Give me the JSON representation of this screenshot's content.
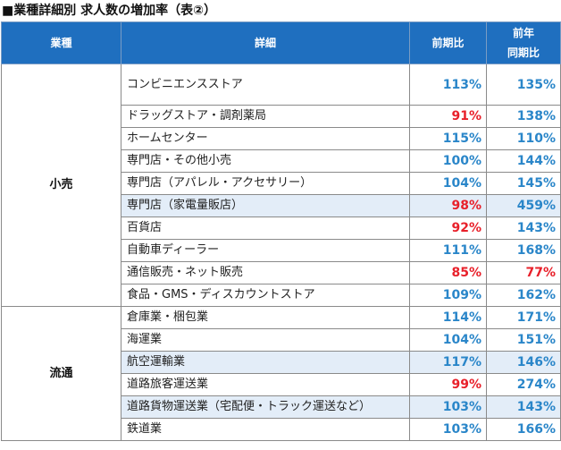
{
  "title": "■業種詳細別 求人数の増加率（表②）",
  "headers": {
    "category": "業種",
    "detail": "詳細",
    "mom": "前期比",
    "yoy_line1": "前年",
    "yoy_line2": "同期比"
  },
  "groups": [
    {
      "category": "小売",
      "rows": [
        {
          "detail": "コンビニエンスストア",
          "mom": "113%",
          "yoy": "135%"
        },
        {
          "detail": "ドラッグストア・調剤薬局",
          "mom": "91%",
          "yoy": "138%"
        },
        {
          "detail": "ホームセンター",
          "mom": "115%",
          "yoy": "110%"
        },
        {
          "detail": "専門店・その他小売",
          "mom": "100%",
          "yoy": "144%"
        },
        {
          "detail": "専門店（アパレル・アクセサリー）",
          "mom": "104%",
          "yoy": "145%"
        },
        {
          "detail": "専門店（家電量販店）",
          "mom": "98%",
          "yoy": "459%"
        },
        {
          "detail": "百貨店",
          "mom": "92%",
          "yoy": "143%"
        },
        {
          "detail": "自動車ディーラー",
          "mom": "111%",
          "yoy": "168%"
        },
        {
          "detail": "通信販売・ネット販売",
          "mom": "85%",
          "yoy": "77%"
        },
        {
          "detail": "食品・GMS・ディスカウントストア",
          "mom": "109%",
          "yoy": "162%"
        }
      ]
    },
    {
      "category": "流通",
      "rows": [
        {
          "detail": "倉庫業・梱包業",
          "mom": "114%",
          "yoy": "171%"
        },
        {
          "detail": "海運業",
          "mom": "104%",
          "yoy": "151%"
        },
        {
          "detail": "航空運輸業",
          "mom": "117%",
          "yoy": "146%"
        },
        {
          "detail": "道路旅客運送業",
          "mom": "99%",
          "yoy": "274%"
        },
        {
          "detail": "道路貨物運送業（宅配便・トラック運送など）",
          "mom": "103%",
          "yoy": "143%"
        },
        {
          "detail": "鉄道業",
          "mom": "103%",
          "yoy": "166%"
        }
      ]
    }
  ],
  "colors": {
    "header_bg": "#1f6fbf",
    "increase_text": "#2a86c9",
    "decrease_text": "#e8202a",
    "highlight_bg": "#e3edf8"
  }
}
